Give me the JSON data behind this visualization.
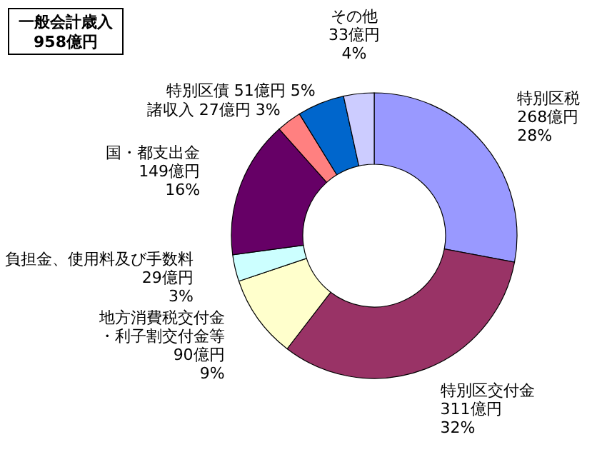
{
  "chart_data": {
    "type": "donut",
    "title": "一般会計歳入",
    "subtitle": "958億円",
    "categories": [
      "特別区税",
      "特別区交付金",
      "地方消費税交付金・利子割交付金等",
      "負担金、使用料及び手数料",
      "国・都支出金",
      "諸収入",
      "特別区債",
      "その他"
    ],
    "values": [
      268,
      311,
      90,
      29,
      149,
      27,
      51,
      33
    ],
    "value_labels": [
      "268億円 28%",
      "311億円 32%",
      "90億円 9%",
      "29億円 3%",
      "149億円 16%",
      "27億円 3%",
      "51億円 5%",
      "33億円 4%"
    ],
    "colors": [
      "#9999ff",
      "#993366",
      "#ffffcc",
      "#ccffff",
      "#660066",
      "#ff8080",
      "#0066cc",
      "#ccccff"
    ]
  }
}
